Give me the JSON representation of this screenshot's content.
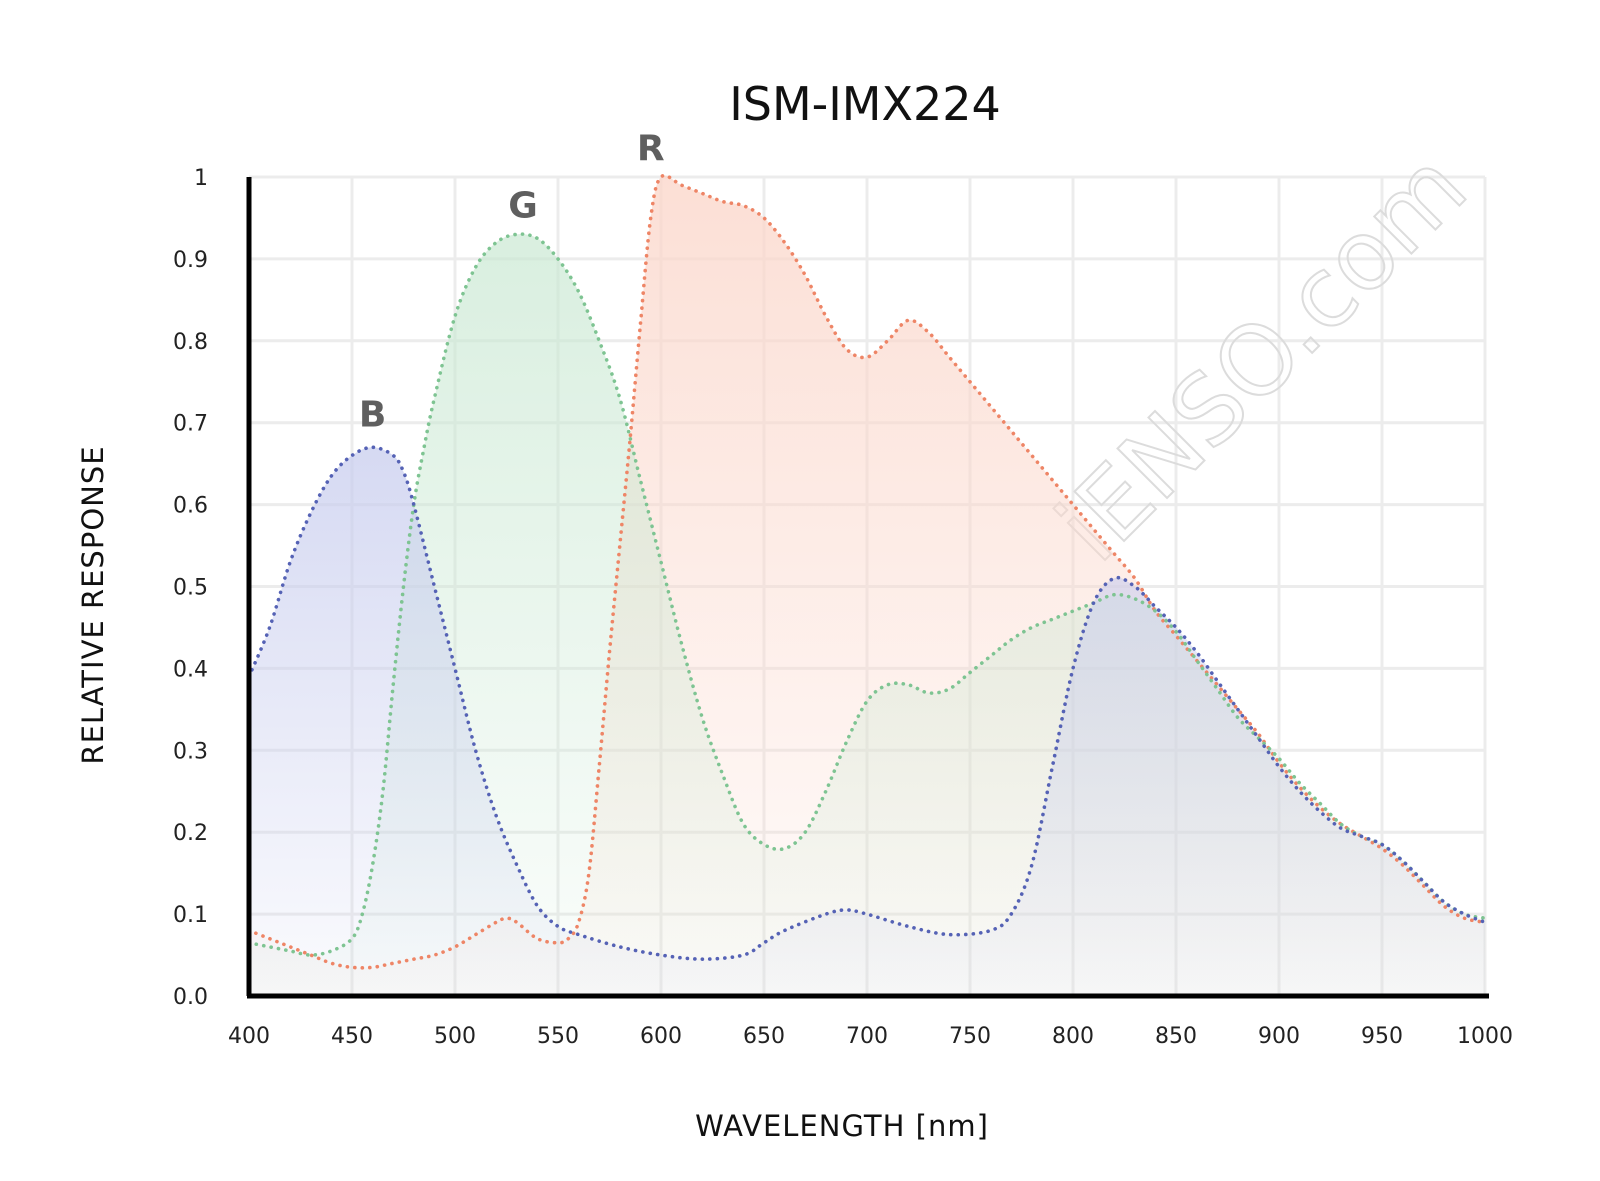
{
  "chart_data": {
    "type": "line",
    "title": "ISM-IMX224",
    "xlabel": "WAVELENGTH [nm]",
    "ylabel": "RELATIVE RESPONSE",
    "xlim": [
      400,
      1000
    ],
    "ylim": [
      0,
      1
    ],
    "x_ticks": [
      400,
      450,
      500,
      550,
      600,
      650,
      700,
      750,
      800,
      850,
      900,
      950,
      1000
    ],
    "x_tick_labels": [
      "400",
      "450",
      "500",
      "550",
      "600",
      "650",
      "700",
      "750",
      "800",
      "850",
      "900",
      "950",
      "1000"
    ],
    "y_ticks": [
      0,
      0.1,
      0.2,
      0.3,
      0.4,
      0.5,
      0.6,
      0.7,
      0.8,
      0.9,
      1
    ],
    "y_tick_labels": [
      "0.0",
      "0.1",
      "0.2",
      "0.3",
      "0.4",
      "0.5",
      "0.6",
      "0.7",
      "0.8",
      "0.9",
      "1"
    ],
    "grid": true,
    "line_style": "dotted",
    "filled": true,
    "watermark": "iENSO.com",
    "series": [
      {
        "name": "B",
        "color": "#5562b5",
        "fill_color": "#c8cdee",
        "label_at": [
          460,
          0.71
        ],
        "points": [
          [
            400,
            0.39
          ],
          [
            410,
            0.45
          ],
          [
            420,
            0.53
          ],
          [
            430,
            0.59
          ],
          [
            440,
            0.635
          ],
          [
            450,
            0.66
          ],
          [
            460,
            0.67
          ],
          [
            470,
            0.66
          ],
          [
            475,
            0.64
          ],
          [
            480,
            0.6
          ],
          [
            490,
            0.5
          ],
          [
            500,
            0.4
          ],
          [
            510,
            0.3
          ],
          [
            520,
            0.22
          ],
          [
            530,
            0.16
          ],
          [
            540,
            0.11
          ],
          [
            550,
            0.085
          ],
          [
            560,
            0.075
          ],
          [
            580,
            0.06
          ],
          [
            600,
            0.05
          ],
          [
            620,
            0.045
          ],
          [
            640,
            0.05
          ],
          [
            650,
            0.065
          ],
          [
            660,
            0.08
          ],
          [
            680,
            0.1
          ],
          [
            690,
            0.105
          ],
          [
            700,
            0.1
          ],
          [
            720,
            0.085
          ],
          [
            740,
            0.075
          ],
          [
            760,
            0.08
          ],
          [
            770,
            0.1
          ],
          [
            780,
            0.16
          ],
          [
            790,
            0.28
          ],
          [
            800,
            0.4
          ],
          [
            810,
            0.48
          ],
          [
            820,
            0.51
          ],
          [
            830,
            0.5
          ],
          [
            840,
            0.475
          ],
          [
            850,
            0.45
          ],
          [
            860,
            0.42
          ],
          [
            870,
            0.385
          ],
          [
            880,
            0.35
          ],
          [
            890,
            0.315
          ],
          [
            900,
            0.28
          ],
          [
            910,
            0.25
          ],
          [
            920,
            0.225
          ],
          [
            930,
            0.205
          ],
          [
            940,
            0.195
          ],
          [
            950,
            0.185
          ],
          [
            960,
            0.165
          ],
          [
            970,
            0.14
          ],
          [
            980,
            0.115
          ],
          [
            990,
            0.1
          ],
          [
            1000,
            0.09
          ]
        ]
      },
      {
        "name": "G",
        "color": "#7ec492",
        "fill_color": "#c9e8d2",
        "label_at": [
          533,
          0.965
        ],
        "points": [
          [
            400,
            0.065
          ],
          [
            410,
            0.06
          ],
          [
            420,
            0.055
          ],
          [
            430,
            0.05
          ],
          [
            440,
            0.055
          ],
          [
            450,
            0.07
          ],
          [
            455,
            0.1
          ],
          [
            460,
            0.16
          ],
          [
            465,
            0.25
          ],
          [
            470,
            0.38
          ],
          [
            475,
            0.5
          ],
          [
            480,
            0.6
          ],
          [
            485,
            0.67
          ],
          [
            490,
            0.73
          ],
          [
            500,
            0.83
          ],
          [
            510,
            0.89
          ],
          [
            520,
            0.92
          ],
          [
            530,
            0.93
          ],
          [
            540,
            0.925
          ],
          [
            550,
            0.9
          ],
          [
            560,
            0.86
          ],
          [
            570,
            0.8
          ],
          [
            580,
            0.73
          ],
          [
            590,
            0.63
          ],
          [
            600,
            0.53
          ],
          [
            610,
            0.43
          ],
          [
            620,
            0.34
          ],
          [
            630,
            0.27
          ],
          [
            640,
            0.21
          ],
          [
            650,
            0.185
          ],
          [
            660,
            0.18
          ],
          [
            670,
            0.2
          ],
          [
            680,
            0.25
          ],
          [
            690,
            0.31
          ],
          [
            700,
            0.36
          ],
          [
            710,
            0.38
          ],
          [
            720,
            0.38
          ],
          [
            730,
            0.37
          ],
          [
            740,
            0.375
          ],
          [
            750,
            0.395
          ],
          [
            760,
            0.415
          ],
          [
            770,
            0.435
          ],
          [
            780,
            0.45
          ],
          [
            790,
            0.46
          ],
          [
            800,
            0.47
          ],
          [
            810,
            0.48
          ],
          [
            820,
            0.49
          ],
          [
            830,
            0.485
          ],
          [
            840,
            0.47
          ],
          [
            850,
            0.445
          ],
          [
            860,
            0.41
          ],
          [
            870,
            0.375
          ],
          [
            880,
            0.34
          ],
          [
            890,
            0.315
          ],
          [
            900,
            0.29
          ],
          [
            910,
            0.26
          ],
          [
            920,
            0.235
          ],
          [
            930,
            0.21
          ],
          [
            940,
            0.195
          ],
          [
            950,
            0.185
          ],
          [
            960,
            0.165
          ],
          [
            970,
            0.14
          ],
          [
            980,
            0.115
          ],
          [
            990,
            0.1
          ],
          [
            1000,
            0.095
          ]
        ]
      },
      {
        "name": "R",
        "color": "#ee8566",
        "fill_color": "#fbd7cb",
        "label_at": [
          595,
          1.035
        ],
        "points": [
          [
            400,
            0.08
          ],
          [
            410,
            0.07
          ],
          [
            420,
            0.06
          ],
          [
            430,
            0.05
          ],
          [
            440,
            0.04
          ],
          [
            450,
            0.035
          ],
          [
            460,
            0.035
          ],
          [
            470,
            0.04
          ],
          [
            480,
            0.045
          ],
          [
            490,
            0.05
          ],
          [
            500,
            0.06
          ],
          [
            510,
            0.075
          ],
          [
            520,
            0.09
          ],
          [
            525,
            0.095
          ],
          [
            530,
            0.09
          ],
          [
            540,
            0.07
          ],
          [
            550,
            0.065
          ],
          [
            555,
            0.07
          ],
          [
            560,
            0.09
          ],
          [
            565,
            0.15
          ],
          [
            570,
            0.28
          ],
          [
            575,
            0.42
          ],
          [
            580,
            0.55
          ],
          [
            585,
            0.68
          ],
          [
            590,
            0.82
          ],
          [
            595,
            0.95
          ],
          [
            600,
            1.0
          ],
          [
            610,
            0.99
          ],
          [
            620,
            0.98
          ],
          [
            630,
            0.97
          ],
          [
            640,
            0.965
          ],
          [
            650,
            0.95
          ],
          [
            660,
            0.92
          ],
          [
            670,
            0.88
          ],
          [
            680,
            0.83
          ],
          [
            690,
            0.79
          ],
          [
            700,
            0.78
          ],
          [
            710,
            0.8
          ],
          [
            720,
            0.825
          ],
          [
            730,
            0.81
          ],
          [
            740,
            0.78
          ],
          [
            750,
            0.75
          ],
          [
            760,
            0.72
          ],
          [
            770,
            0.69
          ],
          [
            780,
            0.66
          ],
          [
            790,
            0.63
          ],
          [
            800,
            0.6
          ],
          [
            810,
            0.57
          ],
          [
            820,
            0.54
          ],
          [
            830,
            0.51
          ],
          [
            840,
            0.47
          ],
          [
            850,
            0.44
          ],
          [
            860,
            0.41
          ],
          [
            870,
            0.38
          ],
          [
            880,
            0.35
          ],
          [
            890,
            0.32
          ],
          [
            900,
            0.285
          ],
          [
            910,
            0.255
          ],
          [
            920,
            0.23
          ],
          [
            930,
            0.21
          ],
          [
            940,
            0.195
          ],
          [
            950,
            0.18
          ],
          [
            960,
            0.16
          ],
          [
            970,
            0.135
          ],
          [
            980,
            0.11
          ],
          [
            990,
            0.095
          ],
          [
            1000,
            0.09
          ]
        ]
      }
    ]
  }
}
